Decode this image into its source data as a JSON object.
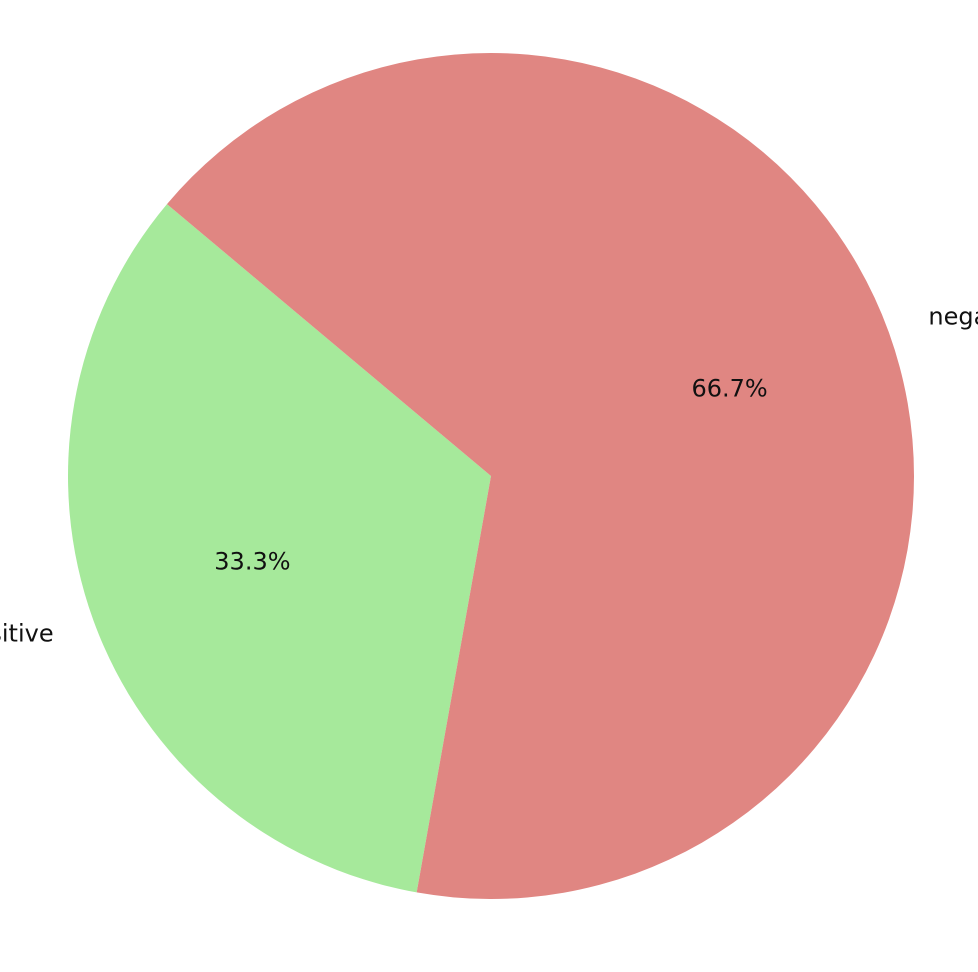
{
  "chart_data": {
    "type": "pie",
    "title": "",
    "start_angle_deg": 140,
    "direction": "counterclockwise",
    "slices": [
      {
        "label": "positive",
        "value": 33.3,
        "percent_label": "33.3%",
        "color": "#a6e99b"
      },
      {
        "label": "negative",
        "value": 66.7,
        "percent_label": "66.7%",
        "color": "#e08682"
      }
    ]
  }
}
